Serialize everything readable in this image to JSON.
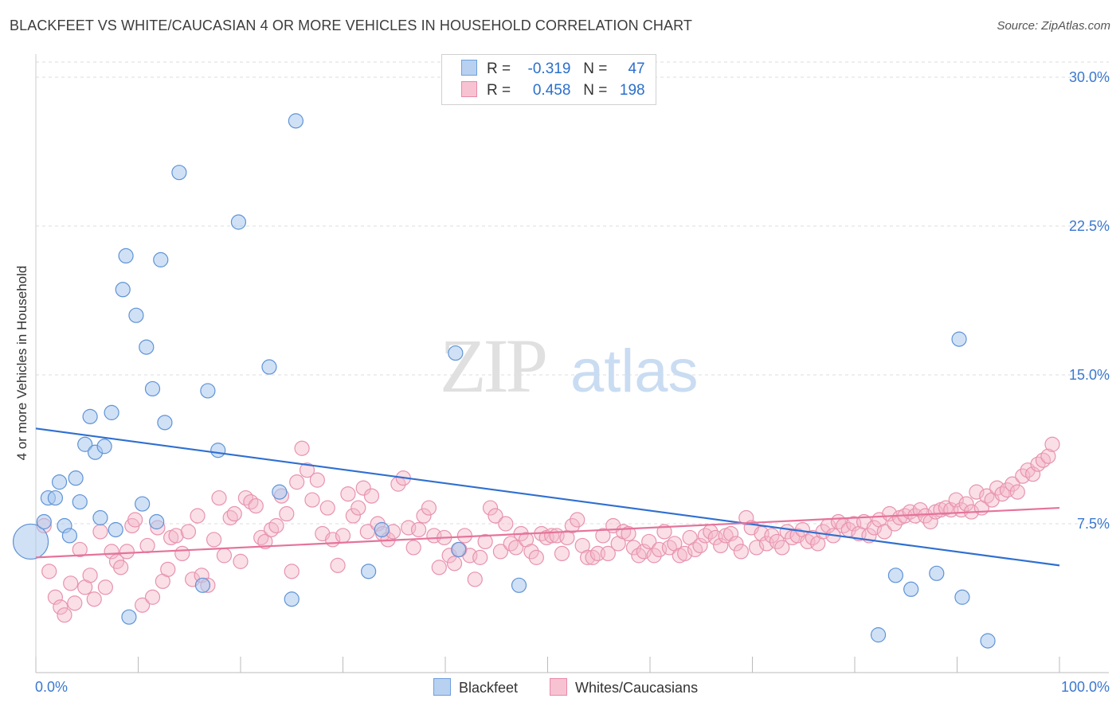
{
  "header": {
    "title": "BLACKFEET VS WHITE/CAUCASIAN 4 OR MORE VEHICLES IN HOUSEHOLD CORRELATION CHART",
    "source": "Source: ZipAtlas.com"
  },
  "watermark": {
    "zip": "ZIP",
    "atlas": "atlas"
  },
  "legend": {
    "r_label": "R =",
    "n_label": "N =",
    "rows": [
      {
        "series": "Blackfeet",
        "r": "-0.319",
        "n": "47",
        "fill": "#b8d1f0",
        "stroke": "#6d9fdc"
      },
      {
        "series": "Whites/Caucasians",
        "r": "0.458",
        "n": "198",
        "fill": "#f7c3d3",
        "stroke": "#e88aa8"
      }
    ]
  },
  "colors": {
    "blue_point": "#aac8ee",
    "blue_stroke": "#5f93d6",
    "blue_line": "#2f6fd0",
    "pink_point": "#f5b7ca",
    "pink_stroke": "#e893ae",
    "pink_line": "#e5739b",
    "tick_label": "#3a78d0",
    "grid": "#dcdcdc"
  },
  "chart_data": {
    "type": "scatter",
    "title": "BLACKFEET VS WHITE/CAUCASIAN 4 OR MORE VEHICLES IN HOUSEHOLD CORRELATION CHART",
    "xlabel": "",
    "ylabel": "4 or more Vehicles in Household",
    "xlim": [
      0,
      100
    ],
    "ylim": [
      0,
      30.5
    ],
    "x_tick_labels": [
      "0.0%",
      "100.0%"
    ],
    "y_ticks": [
      7.5,
      15.0,
      22.5,
      30.0
    ],
    "y_tick_labels": [
      "7.5%",
      "15.0%",
      "22.5%",
      "30.0%"
    ],
    "grid": true,
    "legend_position": "top-center",
    "series": [
      {
        "name": "Blackfeet",
        "r": -0.319,
        "n": 47,
        "trend": {
          "x": [
            0,
            100
          ],
          "y": [
            12.3,
            5.4
          ]
        },
        "points": [
          [
            -0.5,
            6.6
          ],
          [
            0.8,
            7.6
          ],
          [
            1.2,
            8.8
          ],
          [
            1.9,
            8.8
          ],
          [
            2.3,
            9.6
          ],
          [
            2.8,
            7.4
          ],
          [
            3.3,
            6.9
          ],
          [
            3.9,
            9.8
          ],
          [
            4.3,
            8.6
          ],
          [
            4.8,
            11.5
          ],
          [
            5.3,
            12.9
          ],
          [
            5.8,
            11.1
          ],
          [
            6.3,
            7.8
          ],
          [
            6.7,
            11.4
          ],
          [
            7.4,
            13.1
          ],
          [
            7.8,
            7.2
          ],
          [
            8.5,
            19.3
          ],
          [
            8.8,
            21.0
          ],
          [
            9.1,
            2.8
          ],
          [
            9.8,
            18.0
          ],
          [
            10.4,
            8.5
          ],
          [
            10.8,
            16.4
          ],
          [
            11.4,
            14.3
          ],
          [
            11.8,
            7.6
          ],
          [
            12.2,
            20.8
          ],
          [
            12.6,
            12.6
          ],
          [
            14.0,
            25.2
          ],
          [
            16.3,
            4.4
          ],
          [
            16.8,
            14.2
          ],
          [
            17.8,
            11.2
          ],
          [
            19.8,
            22.7
          ],
          [
            22.8,
            15.4
          ],
          [
            23.8,
            9.1
          ],
          [
            25.0,
            3.7
          ],
          [
            25.4,
            27.8
          ],
          [
            32.5,
            5.1
          ],
          [
            33.8,
            7.2
          ],
          [
            41.0,
            16.1
          ],
          [
            41.3,
            6.2
          ],
          [
            47.2,
            4.4
          ],
          [
            82.3,
            1.9
          ],
          [
            84.0,
            4.9
          ],
          [
            85.5,
            4.2
          ],
          [
            88.0,
            5.0
          ],
          [
            90.2,
            16.8
          ],
          [
            90.5,
            3.8
          ],
          [
            93.0,
            1.6
          ]
        ]
      },
      {
        "name": "Whites/Caucasians",
        "r": 0.458,
        "n": 198,
        "trend": {
          "x": [
            0,
            100
          ],
          "y": [
            5.8,
            8.3
          ]
        },
        "points": [
          [
            0.8,
            7.4
          ],
          [
            1.3,
            5.1
          ],
          [
            1.9,
            3.8
          ],
          [
            2.4,
            3.3
          ],
          [
            2.8,
            2.9
          ],
          [
            3.4,
            4.5
          ],
          [
            3.8,
            3.5
          ],
          [
            4.3,
            6.2
          ],
          [
            4.8,
            4.3
          ],
          [
            5.3,
            4.9
          ],
          [
            5.7,
            3.7
          ],
          [
            6.3,
            7.1
          ],
          [
            6.8,
            4.3
          ],
          [
            7.4,
            6.1
          ],
          [
            7.9,
            5.6
          ],
          [
            8.3,
            5.3
          ],
          [
            8.9,
            6.1
          ],
          [
            9.4,
            7.4
          ],
          [
            9.7,
            7.7
          ],
          [
            10.4,
            3.4
          ],
          [
            10.9,
            6.4
          ],
          [
            11.4,
            3.8
          ],
          [
            11.9,
            7.3
          ],
          [
            12.4,
            4.6
          ],
          [
            12.9,
            5.2
          ],
          [
            13.2,
            6.8
          ],
          [
            13.7,
            6.9
          ],
          [
            14.3,
            6.0
          ],
          [
            14.9,
            7.1
          ],
          [
            15.3,
            4.7
          ],
          [
            15.8,
            7.9
          ],
          [
            16.2,
            4.9
          ],
          [
            16.8,
            4.4
          ],
          [
            17.4,
            6.7
          ],
          [
            17.9,
            8.8
          ],
          [
            18.4,
            5.9
          ],
          [
            19.0,
            7.8
          ],
          [
            19.4,
            8.0
          ],
          [
            20.0,
            5.6
          ],
          [
            20.5,
            8.8
          ],
          [
            21.0,
            8.6
          ],
          [
            21.5,
            8.4
          ],
          [
            22.0,
            6.8
          ],
          [
            22.4,
            6.6
          ],
          [
            23.0,
            7.2
          ],
          [
            23.5,
            7.4
          ],
          [
            24.0,
            8.9
          ],
          [
            24.5,
            8.0
          ],
          [
            25.0,
            5.1
          ],
          [
            25.5,
            9.6
          ],
          [
            26.0,
            11.3
          ],
          [
            26.5,
            10.2
          ],
          [
            27.0,
            8.7
          ],
          [
            27.5,
            9.7
          ],
          [
            28.0,
            7.0
          ],
          [
            28.5,
            8.3
          ],
          [
            29.0,
            6.7
          ],
          [
            29.5,
            5.4
          ],
          [
            30.0,
            6.9
          ],
          [
            30.5,
            9.0
          ],
          [
            31.0,
            7.9
          ],
          [
            31.5,
            8.3
          ],
          [
            32.0,
            9.3
          ],
          [
            32.4,
            7.1
          ],
          [
            32.8,
            8.9
          ],
          [
            33.4,
            7.5
          ],
          [
            33.9,
            7.0
          ],
          [
            34.4,
            6.7
          ],
          [
            34.9,
            7.1
          ],
          [
            35.4,
            9.5
          ],
          [
            35.9,
            9.8
          ],
          [
            36.4,
            7.3
          ],
          [
            36.9,
            6.3
          ],
          [
            37.4,
            7.2
          ],
          [
            37.9,
            7.9
          ],
          [
            38.4,
            8.3
          ],
          [
            38.9,
            6.9
          ],
          [
            39.4,
            5.3
          ],
          [
            39.9,
            6.8
          ],
          [
            40.4,
            5.9
          ],
          [
            40.9,
            5.5
          ],
          [
            41.4,
            6.2
          ],
          [
            41.9,
            6.9
          ],
          [
            42.4,
            5.9
          ],
          [
            42.9,
            4.7
          ],
          [
            43.4,
            5.8
          ],
          [
            43.9,
            6.6
          ],
          [
            44.4,
            8.3
          ],
          [
            44.9,
            7.9
          ],
          [
            45.4,
            6.1
          ],
          [
            45.9,
            7.5
          ],
          [
            46.4,
            6.5
          ],
          [
            46.9,
            6.3
          ],
          [
            47.4,
            7.0
          ],
          [
            47.9,
            6.7
          ],
          [
            48.4,
            6.1
          ],
          [
            48.9,
            5.8
          ],
          [
            49.4,
            7.0
          ],
          [
            49.9,
            6.8
          ],
          [
            50.4,
            6.9
          ],
          [
            50.9,
            6.9
          ],
          [
            51.4,
            6.0
          ],
          [
            51.9,
            6.8
          ],
          [
            52.4,
            7.4
          ],
          [
            52.9,
            7.7
          ],
          [
            53.4,
            6.4
          ],
          [
            53.9,
            5.8
          ],
          [
            54.4,
            5.8
          ],
          [
            54.9,
            6.0
          ],
          [
            55.4,
            6.9
          ],
          [
            55.9,
            6.0
          ],
          [
            56.4,
            7.4
          ],
          [
            56.9,
            6.5
          ],
          [
            57.4,
            7.1
          ],
          [
            57.9,
            7.0
          ],
          [
            58.4,
            6.3
          ],
          [
            58.9,
            5.9
          ],
          [
            59.4,
            6.1
          ],
          [
            59.9,
            6.6
          ],
          [
            60.4,
            5.9
          ],
          [
            60.9,
            6.2
          ],
          [
            61.4,
            7.1
          ],
          [
            61.9,
            6.3
          ],
          [
            62.4,
            6.5
          ],
          [
            62.9,
            5.9
          ],
          [
            63.4,
            6.0
          ],
          [
            63.9,
            6.8
          ],
          [
            64.4,
            6.2
          ],
          [
            64.9,
            6.4
          ],
          [
            65.4,
            6.9
          ],
          [
            65.9,
            7.1
          ],
          [
            66.4,
            6.8
          ],
          [
            66.9,
            6.4
          ],
          [
            67.4,
            6.9
          ],
          [
            67.9,
            7.0
          ],
          [
            68.4,
            6.5
          ],
          [
            68.9,
            6.1
          ],
          [
            69.4,
            7.8
          ],
          [
            69.9,
            7.3
          ],
          [
            70.4,
            6.3
          ],
          [
            70.9,
            7.0
          ],
          [
            71.4,
            6.5
          ],
          [
            71.9,
            6.9
          ],
          [
            72.4,
            6.6
          ],
          [
            72.9,
            6.3
          ],
          [
            73.4,
            7.1
          ],
          [
            73.9,
            6.8
          ],
          [
            74.4,
            6.9
          ],
          [
            74.9,
            7.2
          ],
          [
            75.4,
            6.6
          ],
          [
            75.9,
            6.8
          ],
          [
            76.4,
            6.5
          ],
          [
            76.9,
            7.1
          ],
          [
            77.4,
            7.4
          ],
          [
            77.9,
            6.9
          ],
          [
            78.4,
            7.6
          ],
          [
            78.9,
            7.4
          ],
          [
            79.4,
            7.2
          ],
          [
            79.9,
            7.5
          ],
          [
            80.4,
            7.0
          ],
          [
            80.9,
            7.6
          ],
          [
            81.4,
            6.9
          ],
          [
            81.9,
            7.3
          ],
          [
            82.4,
            7.7
          ],
          [
            82.9,
            7.1
          ],
          [
            83.4,
            8.0
          ],
          [
            83.9,
            7.5
          ],
          [
            84.4,
            7.8
          ],
          [
            84.9,
            7.9
          ],
          [
            85.4,
            8.1
          ],
          [
            85.9,
            7.9
          ],
          [
            86.4,
            8.2
          ],
          [
            86.9,
            7.9
          ],
          [
            87.4,
            7.6
          ],
          [
            87.9,
            8.1
          ],
          [
            88.4,
            8.2
          ],
          [
            88.9,
            8.3
          ],
          [
            89.4,
            8.2
          ],
          [
            89.9,
            8.7
          ],
          [
            90.4,
            8.2
          ],
          [
            90.9,
            8.5
          ],
          [
            91.4,
            8.1
          ],
          [
            91.9,
            9.1
          ],
          [
            92.4,
            8.3
          ],
          [
            92.9,
            8.9
          ],
          [
            93.4,
            8.7
          ],
          [
            93.9,
            9.3
          ],
          [
            94.4,
            9.0
          ],
          [
            94.9,
            9.2
          ],
          [
            95.4,
            9.5
          ],
          [
            95.9,
            9.1
          ],
          [
            96.4,
            9.9
          ],
          [
            96.9,
            10.2
          ],
          [
            97.4,
            10.0
          ],
          [
            97.9,
            10.5
          ],
          [
            98.4,
            10.7
          ],
          [
            98.9,
            10.9
          ],
          [
            99.3,
            11.5
          ]
        ]
      }
    ]
  }
}
